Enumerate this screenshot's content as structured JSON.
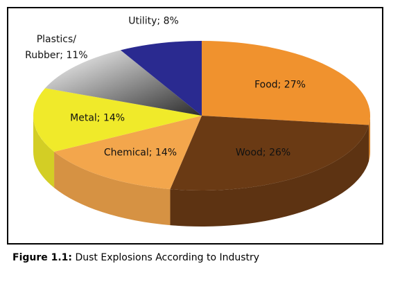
{
  "chart_data": {
    "type": "pie",
    "values": [
      27,
      26,
      14,
      14,
      11,
      8
    ],
    "value_labels": [
      "Food; 27%",
      "Wood; 26%",
      "Chemical; 14%",
      "Metal; 14%",
      "Plastics/\nRubber; 11%",
      "Utility; 8%"
    ],
    "colors": [
      "#f0922e",
      "#6a3a14",
      "#f3a64c",
      "#f0ea2a",
      "#9a9a9a",
      "#2a2a90"
    ]
  },
  "caption": {
    "label": "Figure 1.1:",
    "text": "Dust Explosions According to Industry"
  }
}
